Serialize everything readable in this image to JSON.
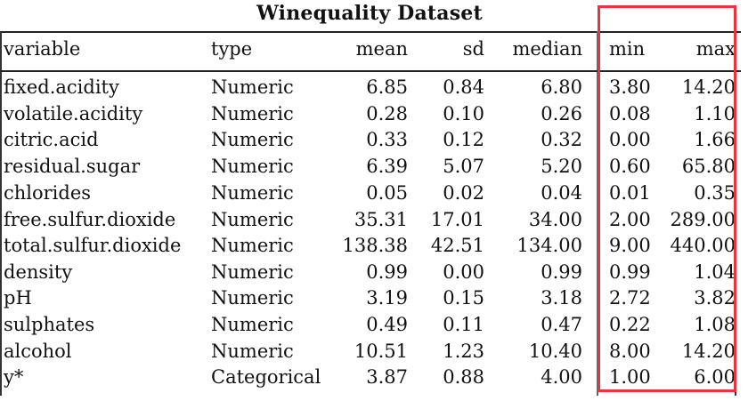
{
  "table": {
    "title": "Winequality Dataset",
    "columns": [
      "variable",
      "type",
      "mean",
      "sd",
      "median",
      "min",
      "max"
    ],
    "rows": [
      {
        "variable": "fixed.acidity",
        "type": "Numeric",
        "mean": "6.85",
        "sd": "0.84",
        "median": "6.80",
        "min": "3.80",
        "max": "14.20"
      },
      {
        "variable": "volatile.acidity",
        "type": "Numeric",
        "mean": "0.28",
        "sd": "0.10",
        "median": "0.26",
        "min": "0.08",
        "max": "1.10"
      },
      {
        "variable": "citric.acid",
        "type": "Numeric",
        "mean": "0.33",
        "sd": "0.12",
        "median": "0.32",
        "min": "0.00",
        "max": "1.66"
      },
      {
        "variable": "residual.sugar",
        "type": "Numeric",
        "mean": "6.39",
        "sd": "5.07",
        "median": "5.20",
        "min": "0.60",
        "max": "65.80"
      },
      {
        "variable": "chlorides",
        "type": "Numeric",
        "mean": "0.05",
        "sd": "0.02",
        "median": "0.04",
        "min": "0.01",
        "max": "0.35"
      },
      {
        "variable": "free.sulfur.dioxide",
        "type": "Numeric",
        "mean": "35.31",
        "sd": "17.01",
        "median": "34.00",
        "min": "2.00",
        "max": "289.00"
      },
      {
        "variable": "total.sulfur.dioxide",
        "type": "Numeric",
        "mean": "138.38",
        "sd": "42.51",
        "median": "134.00",
        "min": "9.00",
        "max": "440.00"
      },
      {
        "variable": "density",
        "type": "Numeric",
        "mean": "0.99",
        "sd": "0.00",
        "median": "0.99",
        "min": "0.99",
        "max": "1.04"
      },
      {
        "variable": "pH",
        "type": "Numeric",
        "mean": "3.19",
        "sd": "0.15",
        "median": "3.18",
        "min": "2.72",
        "max": "3.82"
      },
      {
        "variable": "sulphates",
        "type": "Numeric",
        "mean": "0.49",
        "sd": "0.11",
        "median": "0.47",
        "min": "0.22",
        "max": "1.08"
      },
      {
        "variable": "alcohol",
        "type": "Numeric",
        "mean": "10.51",
        "sd": "1.23",
        "median": "10.40",
        "min": "8.00",
        "max": "14.20"
      },
      {
        "variable": "y*",
        "type": "Categorical",
        "mean": "3.87",
        "sd": "0.88",
        "median": "4.00",
        "min": "1.00",
        "max": "6.00"
      }
    ]
  },
  "highlight": {
    "color": "#e8343a",
    "columns": [
      "min",
      "max"
    ]
  }
}
